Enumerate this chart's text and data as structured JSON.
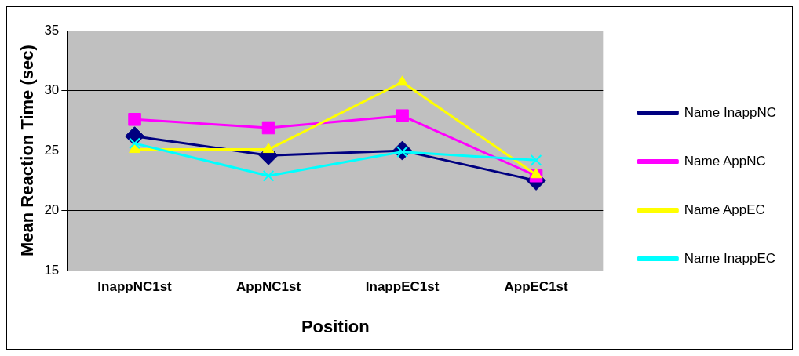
{
  "chart_data": {
    "type": "line",
    "xlabel": "Position",
    "ylabel": "Mean Reaction Time (sec)",
    "categories": [
      "InappNC1st",
      "AppNC1st",
      "InappEC1st",
      "AppEC1st"
    ],
    "series": [
      {
        "name": "Name InappNC",
        "color": "#000080",
        "marker": "diamond",
        "values": [
          26.2,
          24.6,
          25.0,
          22.5
        ]
      },
      {
        "name": "Name AppNC",
        "color": "#ff00ff",
        "marker": "square",
        "values": [
          27.6,
          26.9,
          27.9,
          22.9
        ]
      },
      {
        "name": "Name AppEC",
        "color": "#ffff00",
        "marker": "triangle",
        "values": [
          25.1,
          25.1,
          30.7,
          23.0
        ]
      },
      {
        "name": "Name InappEC",
        "color": "#00ffff",
        "marker": "cross",
        "values": [
          25.6,
          22.9,
          24.9,
          24.2
        ]
      }
    ],
    "ylim": [
      15,
      35
    ],
    "yticks": [
      15,
      20,
      25,
      30,
      35
    ],
    "grid": "y",
    "legend": "right"
  }
}
